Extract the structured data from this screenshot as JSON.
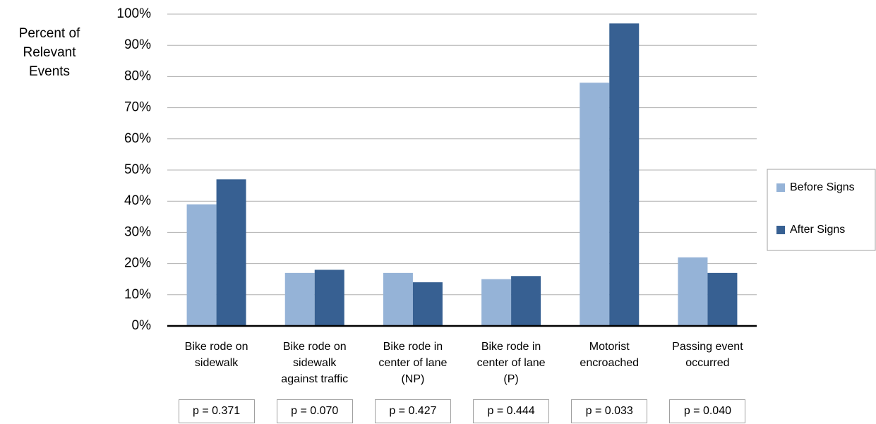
{
  "chart_data": {
    "type": "bar",
    "y_label": "Percent of\nRelevant\nEvents",
    "categories": [
      "Bike rode on\nsidewalk",
      "Bike rode on\nsidewalk\nagainst traffic",
      "Bike rode in\ncenter of lane\n(NP)",
      "Bike rode in\ncenter of lane\n(P)",
      "Motorist\nencroached",
      "Passing event\noccurred"
    ],
    "series": [
      {
        "name": "Before Signs",
        "color": "#95b3d7",
        "values": [
          39,
          17,
          17,
          15,
          78,
          22
        ]
      },
      {
        "name": "After Signs",
        "color": "#376092",
        "values": [
          47,
          18,
          14,
          16,
          97,
          17
        ]
      }
    ],
    "annotations": [
      "p = 0.371",
      "p = 0.070",
      "p = 0.427",
      "p = 0.444",
      "p = 0.033",
      "p = 0.040"
    ],
    "ylim": [
      0,
      100
    ],
    "yticks": [
      {
        "value": 0,
        "label": "0%"
      },
      {
        "value": 10,
        "label": "10%"
      },
      {
        "value": 20,
        "label": "20%"
      },
      {
        "value": 30,
        "label": "30%"
      },
      {
        "value": 40,
        "label": "40%"
      },
      {
        "value": 50,
        "label": "50%"
      },
      {
        "value": 60,
        "label": "60%"
      },
      {
        "value": 70,
        "label": "70%"
      },
      {
        "value": 80,
        "label": "80%"
      },
      {
        "value": 90,
        "label": "90%"
      },
      {
        "value": 100,
        "label": "100%"
      }
    ],
    "grid": true,
    "legend": "right"
  }
}
